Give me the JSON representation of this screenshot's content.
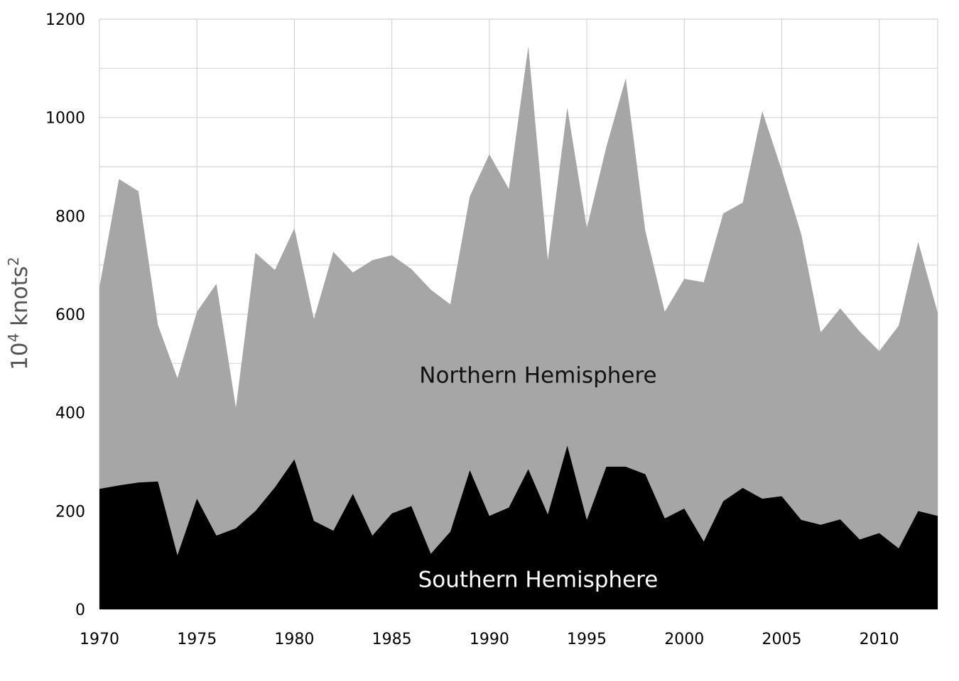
{
  "chart_data": {
    "type": "area",
    "stacked": true,
    "title": "",
    "xlabel": "",
    "ylabel": {
      "base": "10",
      "exp1": "4",
      "unit": " knots",
      "exp2": "2"
    },
    "xlim": [
      1970,
      2013
    ],
    "ylim": [
      0,
      1200
    ],
    "grid": true,
    "x_ticks": [
      1970,
      1975,
      1980,
      1985,
      1990,
      1995,
      2000,
      2005,
      2010
    ],
    "x_tick_labels": [
      "1970",
      "1975",
      "1980",
      "1985",
      "1990",
      "1995",
      "2000",
      "2005",
      "2010"
    ],
    "y_ticks": [
      0,
      200,
      400,
      600,
      800,
      1000,
      1200
    ],
    "y_tick_labels": [
      "0",
      "200",
      "400",
      "600",
      "800",
      "1000",
      "1200"
    ],
    "x": [
      1970,
      1971,
      1972,
      1973,
      1974,
      1975,
      1976,
      1977,
      1978,
      1979,
      1980,
      1981,
      1982,
      1983,
      1984,
      1985,
      1986,
      1987,
      1988,
      1989,
      1990,
      1991,
      1992,
      1993,
      1994,
      1995,
      1996,
      1997,
      1998,
      1999,
      2000,
      2001,
      2002,
      2003,
      2004,
      2005,
      2006,
      2007,
      2008,
      2009,
      2010,
      2011,
      2012,
      2013
    ],
    "series": [
      {
        "name": "Southern Hemisphere",
        "color": "#000000",
        "label_color": "#ffffff",
        "label_at": {
          "x": 1992.5,
          "y": 60
        },
        "values": [
          245,
          252,
          258,
          260,
          110,
          225,
          150,
          165,
          200,
          248,
          305,
          180,
          160,
          235,
          150,
          195,
          210,
          113,
          158,
          283,
          190,
          207,
          285,
          193,
          333,
          182,
          290,
          290,
          275,
          185,
          205,
          138,
          220,
          247,
          225,
          230,
          182,
          172,
          183,
          142,
          155,
          124,
          200,
          190
        ]
      },
      {
        "name": "Northern Hemisphere",
        "color": "#a6a6a6",
        "label_color": "#111111",
        "label_at": {
          "x": 1992.5,
          "y": 475
        },
        "stacked_totals": [
          655,
          875,
          850,
          578,
          470,
          605,
          662,
          410,
          725,
          690,
          775,
          590,
          727,
          685,
          710,
          720,
          692,
          650,
          620,
          840,
          925,
          855,
          1145,
          710,
          1020,
          775,
          940,
          1080,
          770,
          605,
          672,
          665,
          805,
          827,
          1013,
          893,
          763,
          563,
          612,
          565,
          525,
          577,
          747,
          603
        ]
      }
    ]
  }
}
